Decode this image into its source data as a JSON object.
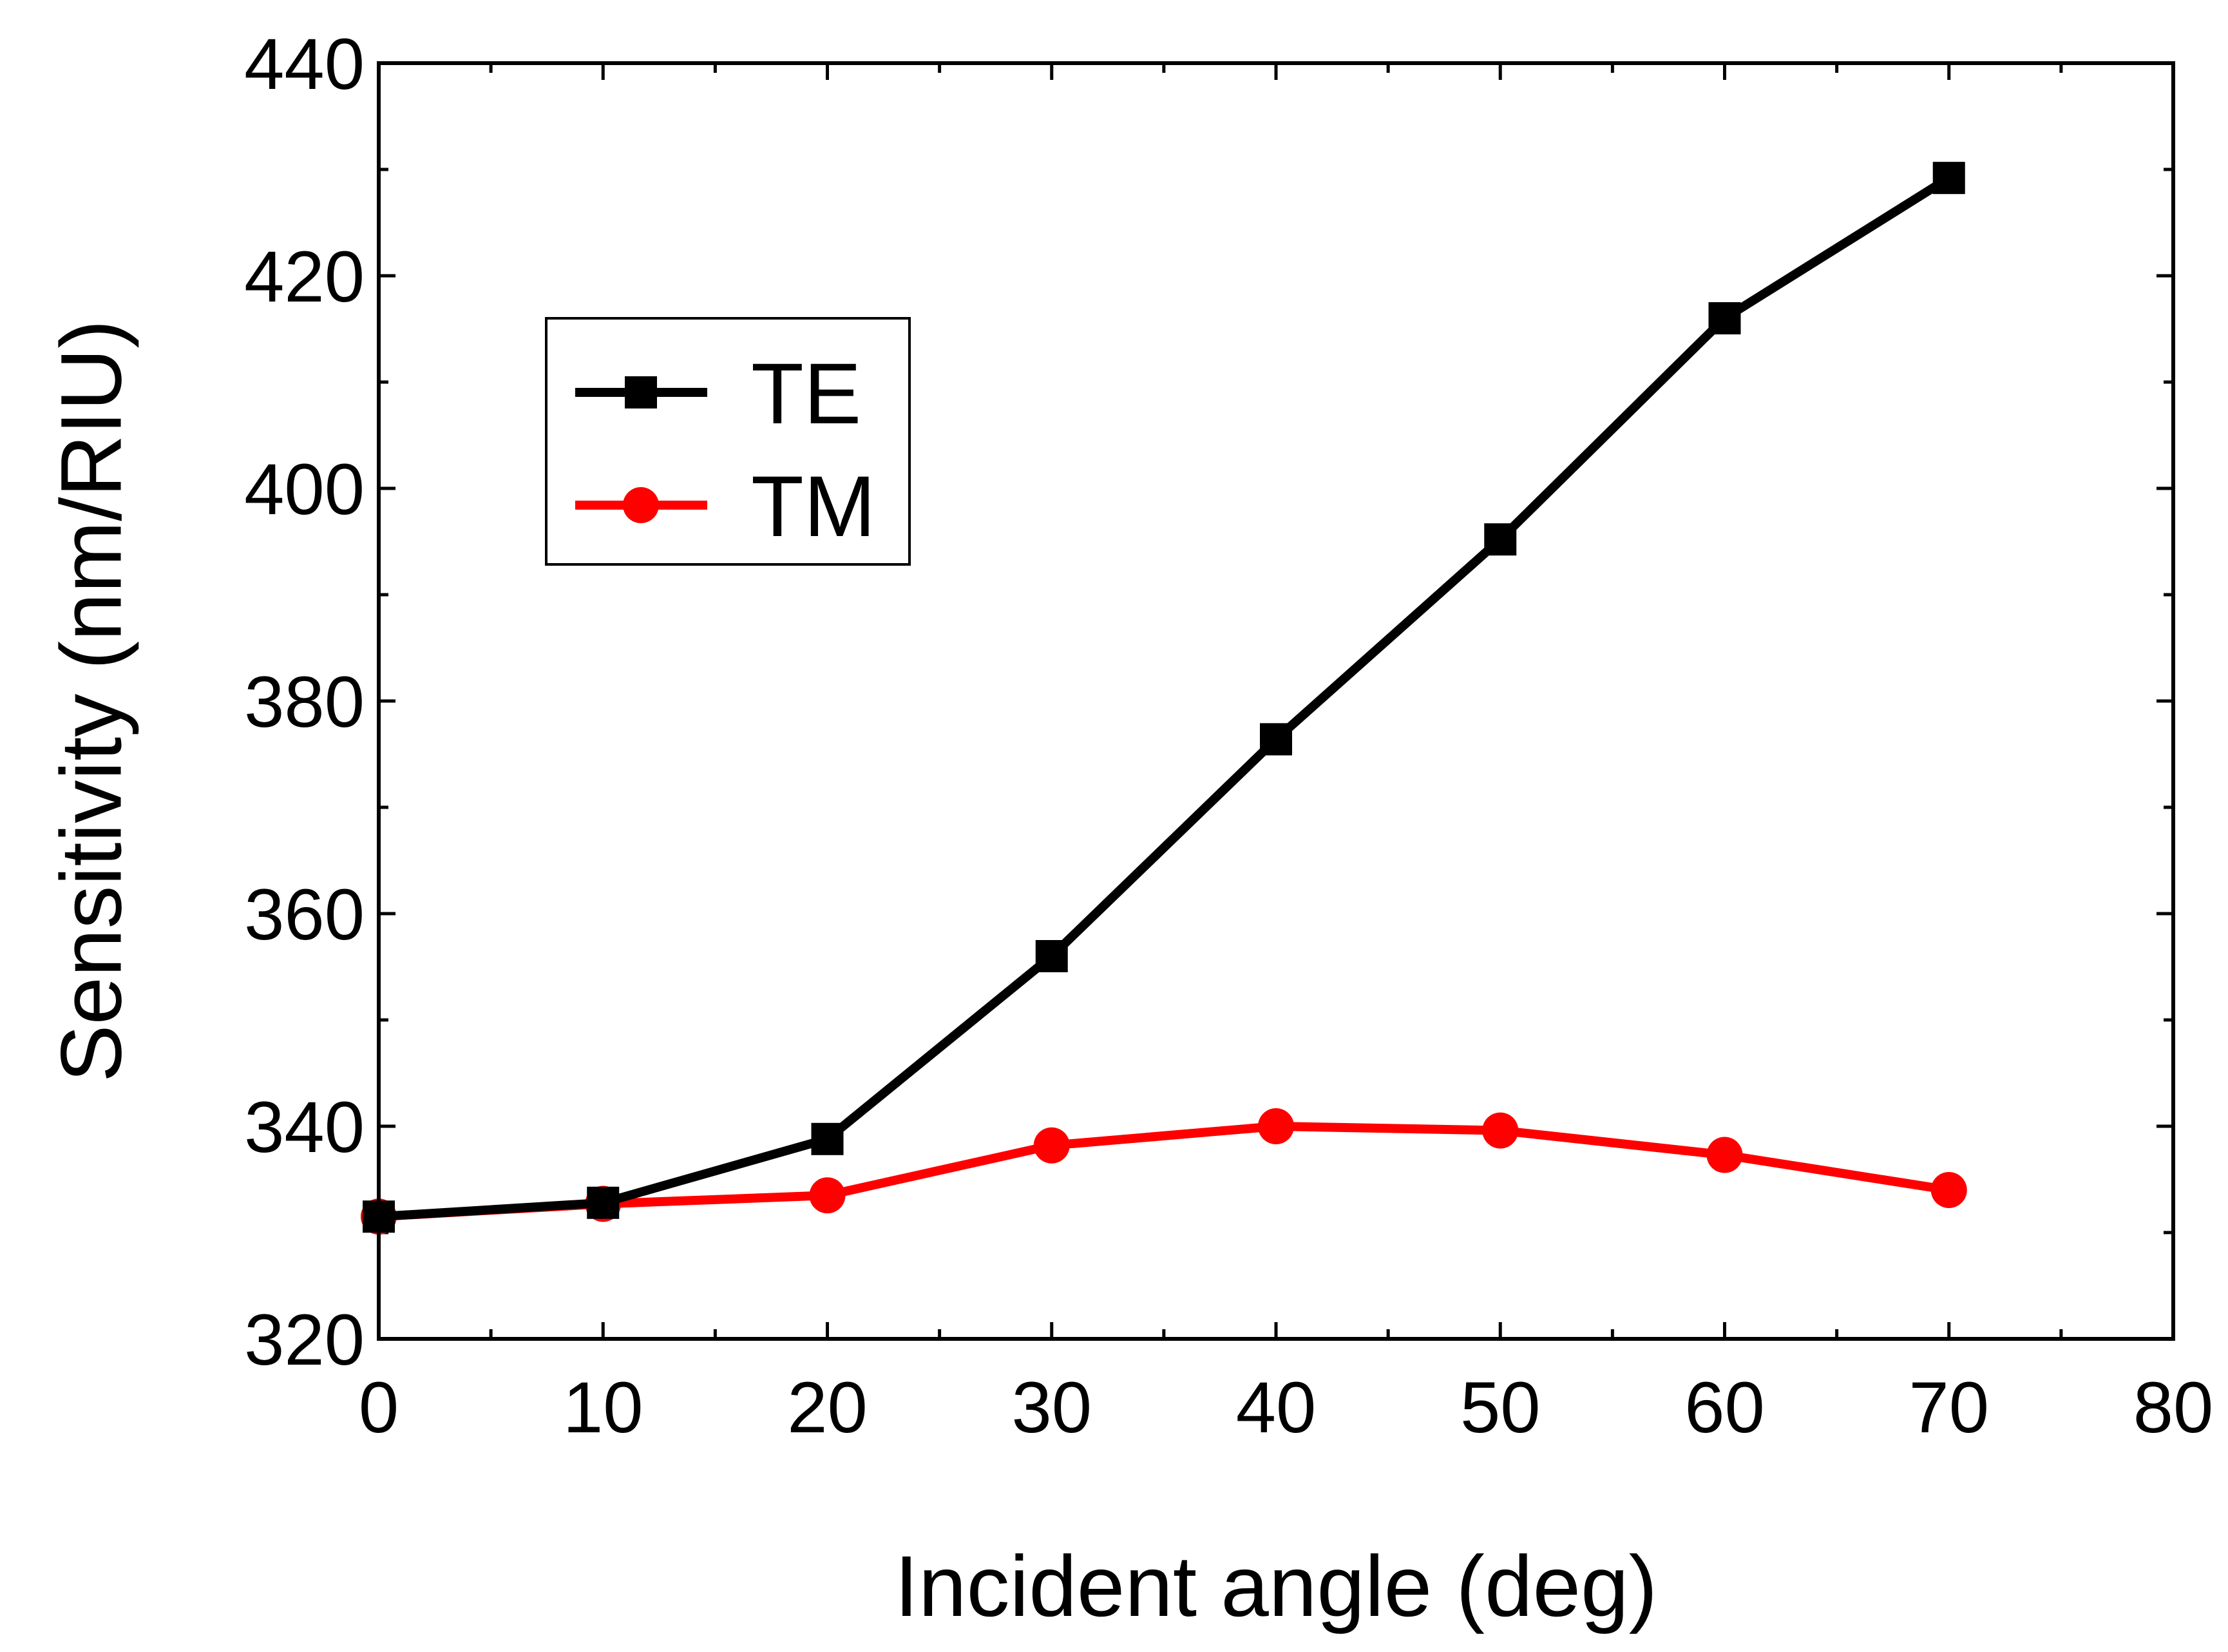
{
  "chart_data": {
    "type": "line",
    "title": "",
    "xlabel": "Incident angle (deg)",
    "ylabel": "Sensitivity (nm/RIU)",
    "xlim": [
      0,
      80
    ],
    "ylim": [
      320,
      440
    ],
    "xticks": [
      0,
      10,
      20,
      30,
      40,
      50,
      60,
      70,
      80
    ],
    "yticks": [
      320,
      340,
      360,
      380,
      400,
      420,
      440
    ],
    "xtick_labels": [
      "0",
      "10",
      "20",
      "30",
      "40",
      "50",
      "60",
      "70",
      "80"
    ],
    "ytick_labels": [
      "320",
      "340",
      "360",
      "380",
      "400",
      "420",
      "440"
    ],
    "grid": false,
    "legend_position": "top-left",
    "x": [
      0,
      10,
      20,
      30,
      40,
      50,
      60,
      70
    ],
    "series": [
      {
        "name": "TE",
        "marker": "square",
        "color": "#000000",
        "values": [
          331.5,
          332.8,
          338.8,
          356.0,
          376.4,
          395.2,
          416.0,
          429.2
        ]
      },
      {
        "name": "TM",
        "marker": "circle",
        "color": "#ff0000",
        "values": [
          331.5,
          332.7,
          333.5,
          338.2,
          340.0,
          339.6,
          337.3,
          334.0
        ]
      }
    ]
  }
}
